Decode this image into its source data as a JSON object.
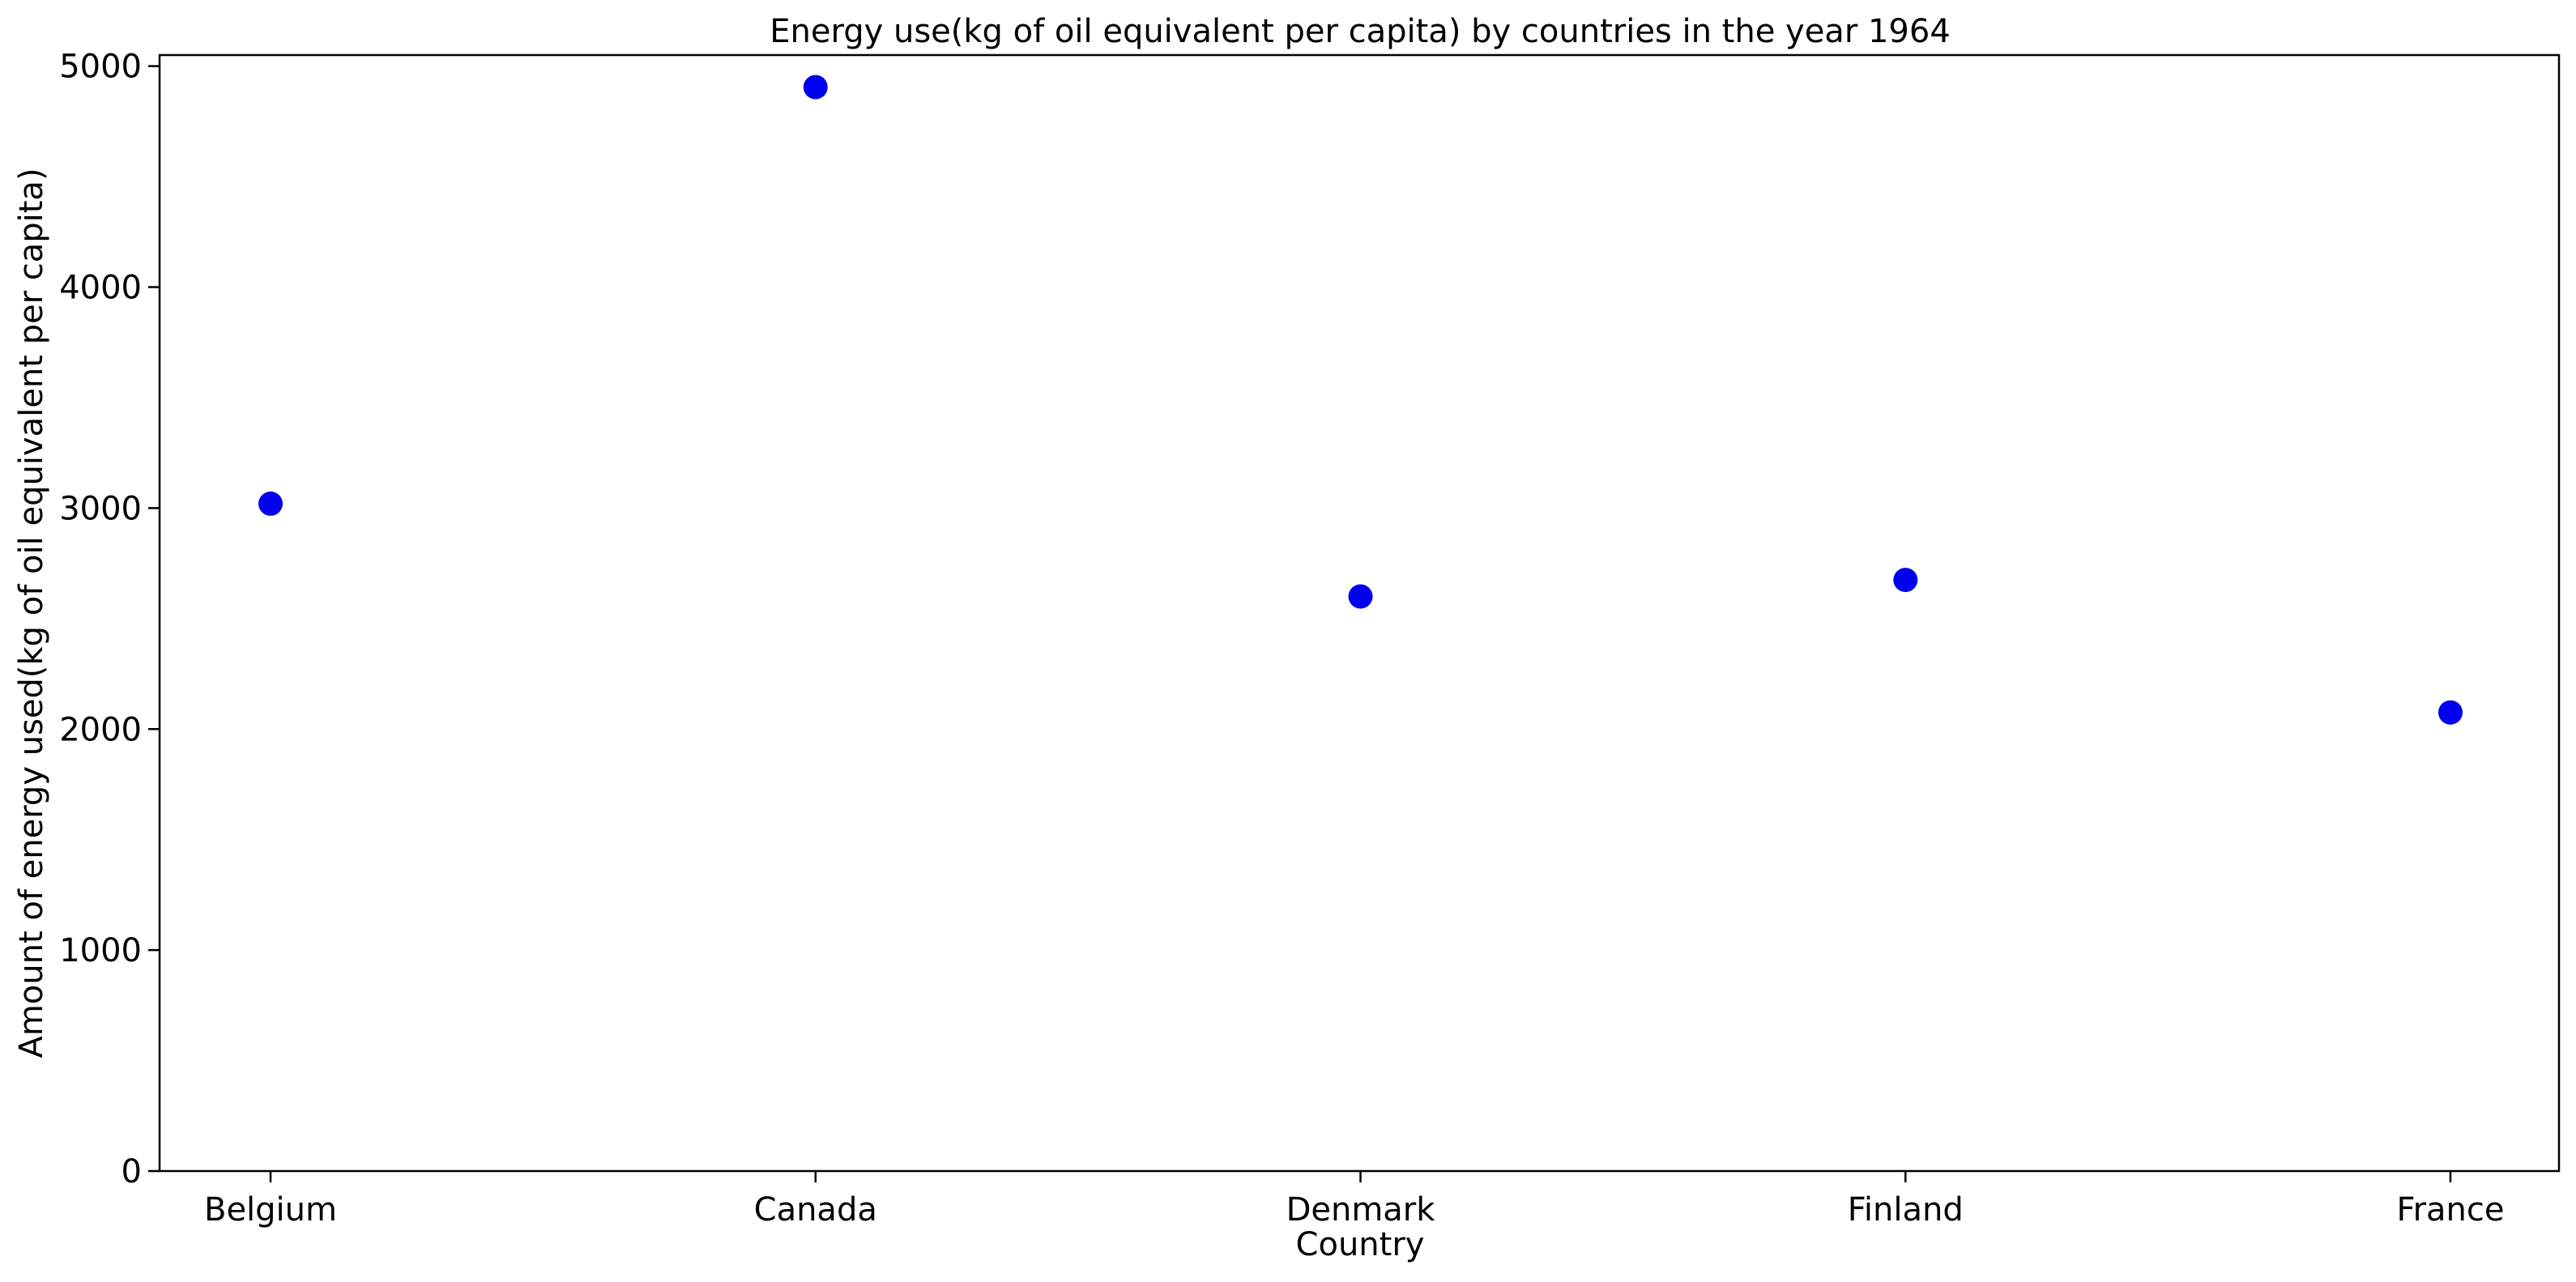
{
  "chart_data": {
    "type": "scatter",
    "title": "Energy use(kg of oil equivalent per capita) by countries in the year 1964",
    "xlabel": "Country",
    "ylabel": "Amount of energy used(kg of oil equivalent per capita)",
    "categories": [
      "Belgium",
      "Canada",
      "Denmark",
      "Finland",
      "France"
    ],
    "values": [
      3020,
      4905,
      2600,
      2675,
      2075
    ],
    "ylim": [
      0,
      5050
    ],
    "yticks": [
      0,
      1000,
      2000,
      3000,
      4000,
      5000
    ],
    "grid": false,
    "legend": "none",
    "marker_color": "#0000ee"
  }
}
